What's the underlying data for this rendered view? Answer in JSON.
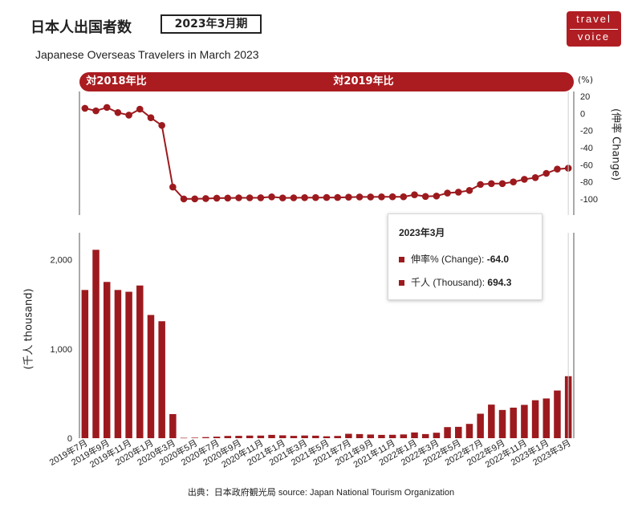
{
  "header": {
    "title": "日本人出国者数",
    "period": "2023年3月期",
    "subtitle": "Japanese Overseas Travelers in March 2023"
  },
  "logo": {
    "line1": "travel",
    "line2": "voice"
  },
  "bands": {
    "vs2018": "対2018年比",
    "vs2019": "対2019年比"
  },
  "axes": {
    "pct_unit": "(%)",
    "right_label": "(伸率 Change)",
    "left_label": "(千人 thousand)"
  },
  "tooltip": {
    "title": "2023年3月",
    "change_label": "伸率% (Change):",
    "change_value": "-64.0",
    "thousand_label": "千人 (Thousand):",
    "thousand_value": "694.3"
  },
  "source": "出典：日本政府観光局  source: Japan National Tourism Organization",
  "colors": {
    "accent": "#ab1c20",
    "bar": "#9c1a1e",
    "line": "#9c1a1e"
  },
  "chart_data": [
    {
      "type": "line",
      "title": "",
      "ylabel": "(伸率 Change)",
      "ylim": [
        -100,
        20
      ],
      "yticks": [
        20,
        0,
        -20,
        -40,
        -60,
        -80,
        -100
      ],
      "x": [
        "2019年7月",
        "2019年8月",
        "2019年9月",
        "2019年10月",
        "2019年11月",
        "2019年12月",
        "2020年1月",
        "2020年2月",
        "2020年3月",
        "2020年4月",
        "2020年5月",
        "2020年6月",
        "2020年7月",
        "2020年8月",
        "2020年9月",
        "2020年10月",
        "2020年11月",
        "2020年12月",
        "2021年1月",
        "2021年2月",
        "2021年3月",
        "2021年4月",
        "2021年5月",
        "2021年6月",
        "2021年7月",
        "2021年8月",
        "2021年9月",
        "2021年10月",
        "2021年11月",
        "2021年12月",
        "2022年1月",
        "2022年2月",
        "2022年3月",
        "2022年4月",
        "2022年5月",
        "2022年6月",
        "2022年7月",
        "2022年8月",
        "2022年9月",
        "2022年10月",
        "2022年11月",
        "2022年12月",
        "2023年1月",
        "2023年2月",
        "2023年3月"
      ],
      "series": [
        {
          "values": [
            6,
            3,
            7,
            1,
            -2,
            5,
            -5,
            -14,
            -86,
            -99.9,
            -99.8,
            -99.5,
            -99,
            -98.9,
            -98.6,
            -98.6,
            -98.5,
            -97.5,
            -98.7,
            -98.6,
            -98.4,
            -98.3,
            -98.2,
            -98.2,
            -97.8,
            -97.6,
            -97.6,
            -97.5,
            -97.4,
            -97.4,
            -95,
            -97,
            -96.5,
            -93,
            -92,
            -90,
            -83,
            -82,
            -82,
            -80,
            -77,
            -75,
            -70,
            -65,
            -64
          ]
        }
      ]
    },
    {
      "type": "bar",
      "title": "",
      "ylabel": "(千人 thousand)",
      "ylim": [
        0,
        2400
      ],
      "yticks": [
        0,
        1000,
        2000
      ],
      "ytick_labels": [
        "0",
        "1,000",
        "2,000"
      ],
      "categories": [
        "2019年7月",
        "2019年8月",
        "2019年9月",
        "2019年10月",
        "2019年11月",
        "2019年12月",
        "2020年1月",
        "2020年2月",
        "2020年3月",
        "2020年4月",
        "2020年5月",
        "2020年6月",
        "2020年7月",
        "2020年8月",
        "2020年9月",
        "2020年10月",
        "2020年11月",
        "2020年12月",
        "2021年1月",
        "2021年2月",
        "2021年3月",
        "2021年4月",
        "2021年5月",
        "2021年6月",
        "2021年7月",
        "2021年8月",
        "2021年9月",
        "2021年10月",
        "2021年11月",
        "2021年12月",
        "2022年1月",
        "2022年2月",
        "2022年3月",
        "2022年4月",
        "2022年5月",
        "2022年6月",
        "2022年7月",
        "2022年8月",
        "2022年9月",
        "2022年10月",
        "2022年11月",
        "2022年12月",
        "2023年1月",
        "2023年2月",
        "2023年3月"
      ],
      "x_tick_labels": [
        "2019年7月",
        "2019年9月",
        "2019年11月",
        "2020年1月",
        "2020年3月",
        "2020年5月",
        "2020年7月",
        "2020年9月",
        "2020年11月",
        "2021年1月",
        "2021年3月",
        "2021年5月",
        "2021年7月",
        "2021年9月",
        "2021年11月",
        "2022年1月",
        "2022年3月",
        "2022年5月",
        "2022年7月",
        "2022年9月",
        "2022年11月",
        "2023年1月",
        "2023年3月"
      ],
      "values": [
        1660,
        2110,
        1750,
        1660,
        1640,
        1710,
        1380,
        1310,
        270,
        4,
        6,
        12,
        17,
        25,
        26,
        29,
        29,
        37,
        32,
        26,
        30,
        28,
        21,
        25,
        49,
        46,
        41,
        37,
        38,
        42,
        64,
        46,
        61,
        124,
        127,
        160,
        274,
        376,
        316,
        342,
        373,
        425,
        445,
        534,
        694.3
      ]
    }
  ]
}
